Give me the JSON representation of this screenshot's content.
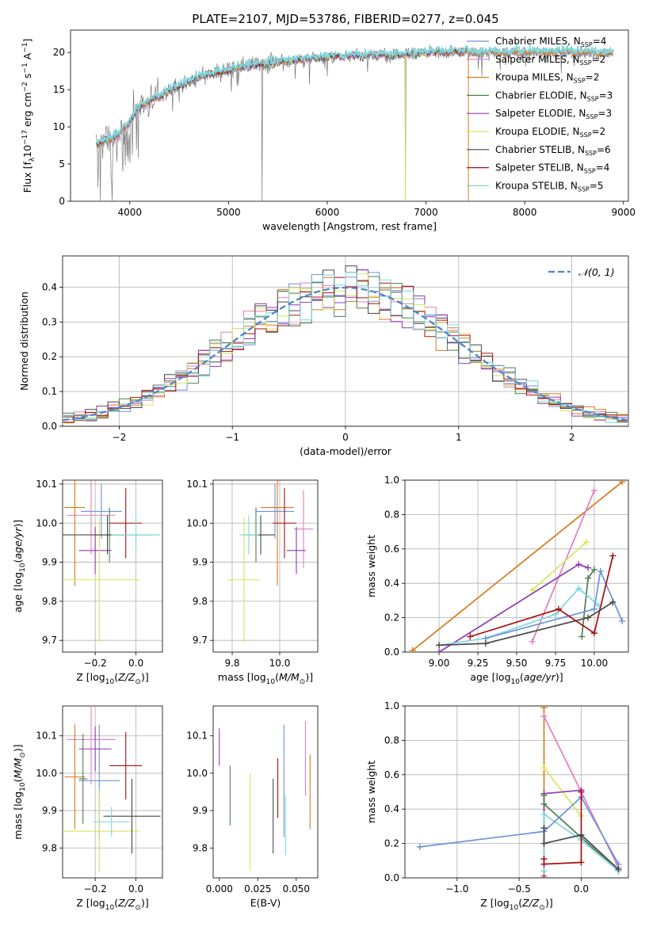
{
  "title": "PLATE=2107, MJD=53786, FIBERID=0277, z=0.045",
  "colors": {
    "Chabrier MILES": "#6b93d9",
    "Salpeter MILES": "#e07fbf",
    "Kroupa MILES": "#d87a1e",
    "Chabrier ELODIE": "#4f7f4f",
    "Salpeter ELODIE": "#8e3bb3",
    "Kroupa ELODIE": "#d6e65a",
    "Chabrier STELIB": "#474747",
    "Salpeter STELIB": "#a81010",
    "Kroupa STELIB": "#7fd5de",
    "data": "#7a7a7a",
    "normal": "#4f86c6"
  },
  "chart_data": [
    {
      "type": "line",
      "xlabel": "wavelength [Angstrom, rest frame]",
      "ylabel": "Flux [f_λ 10^-17 erg cm^-2 s^-1 A^-1]",
      "xlim": [
        3400,
        9050
      ],
      "ylim": [
        0,
        23
      ],
      "xticks": [
        4000,
        5000,
        6000,
        7000,
        8000,
        9000
      ],
      "yticks": [
        0,
        5,
        10,
        15,
        20
      ],
      "legend_position": "right",
      "legend": [
        {
          "model": "Chabrier MILES",
          "nssp": 4
        },
        {
          "model": "Salpeter MILES",
          "nssp": 2
        },
        {
          "model": "Kroupa MILES",
          "nssp": 2
        },
        {
          "model": "Chabrier ELODIE",
          "nssp": 3
        },
        {
          "model": "Salpeter ELODIE",
          "nssp": 3
        },
        {
          "model": "Kroupa ELODIE",
          "nssp": 2
        },
        {
          "model": "Chabrier STELIB",
          "nssp": 6
        },
        {
          "model": "Salpeter STELIB",
          "nssp": 4
        },
        {
          "model": "Kroupa STELIB",
          "nssp": 5
        }
      ],
      "continuum": {
        "wavelength": [
          3660,
          3800,
          3900,
          4000,
          4100,
          4200,
          4300,
          4500,
          4700,
          4900,
          5100,
          5300,
          5500,
          5700,
          6000,
          6300,
          6600,
          6900,
          7200,
          7450,
          7800,
          8200,
          8600,
          8900
        ],
        "flux": [
          7.5,
          8.5,
          9.0,
          10.8,
          12.8,
          13.5,
          14.2,
          15.5,
          16.6,
          17.3,
          18.0,
          18.4,
          18.8,
          19.0,
          19.4,
          19.6,
          19.7,
          19.9,
          20.0,
          20.1,
          20.0,
          20.1,
          20.0,
          20.0
        ]
      },
      "masked_ranges": [
        [
          3400,
          3660
        ],
        [
          7420,
          9050
        ]
      ],
      "spikes_to_zero": [
        3650,
        3700,
        3820,
        5340,
        6790
      ]
    },
    {
      "type": "histogram",
      "xlabel": "(data-model)/error",
      "ylabel": "Normed distribution",
      "xlim": [
        -2.5,
        2.5
      ],
      "ylim": [
        0,
        0.49
      ],
      "xticks": [
        -2,
        -1,
        0,
        1,
        2
      ],
      "yticks": [
        0.0,
        0.1,
        0.2,
        0.3,
        0.4
      ],
      "grid": true,
      "bin_width": 0.1,
      "reference_label": "𝒩(0, 1)",
      "legend_position": "top-right"
    },
    {
      "type": "errorbar",
      "xlabel": "Z [log10(Z/Z⊙)]",
      "ylabel": "age [log10(age/yr)]",
      "xlim": [
        -0.36,
        0.13
      ],
      "ylim": [
        9.67,
        10.11
      ],
      "xticks": [
        -0.2,
        0.0
      ],
      "yticks": [
        9.7,
        9.8,
        9.9,
        10.0,
        10.1
      ],
      "grid": true,
      "points": [
        {
          "model": "Chabrier MILES",
          "x": -0.17,
          "xerr": 0.1,
          "y": 10.03,
          "yerr": 0.07
        },
        {
          "model": "Salpeter MILES",
          "x": -0.22,
          "xerr": 0.12,
          "y": 10.02,
          "yerr": 0.1
        },
        {
          "model": "Kroupa MILES",
          "x": -0.3,
          "xerr": 0.05,
          "y": 10.04,
          "yerr": 0.2
        },
        {
          "model": "Chabrier ELODIE",
          "x": -0.13,
          "xerr": 0.07,
          "y": 9.97,
          "yerr": 0.07
        },
        {
          "model": "Salpeter ELODIE",
          "x": -0.2,
          "xerr": 0.08,
          "y": 9.93,
          "yerr": 0.06
        },
        {
          "model": "Kroupa ELODIE",
          "x": -0.18,
          "xerr": 0.2,
          "y": 9.855,
          "yerr": 0.16
        },
        {
          "model": "Chabrier STELIB",
          "x": -0.14,
          "xerr": 0.22,
          "y": 9.97,
          "yerr": 0.05
        },
        {
          "model": "Salpeter STELIB",
          "x": -0.05,
          "xerr": 0.08,
          "y": 10.0,
          "yerr": 0.09
        },
        {
          "model": "Kroupa STELIB",
          "x": 0.0,
          "xerr": 0.12,
          "y": 9.97,
          "yerr": 0.05
        }
      ]
    },
    {
      "type": "errorbar",
      "xlabel": "mass [log10(M/M⊙)]",
      "ylabel": "",
      "xlim": [
        9.72,
        10.16
      ],
      "ylim": [
        9.67,
        10.11
      ],
      "xticks": [
        9.8,
        10.0
      ],
      "yticks": [
        9.7,
        9.8,
        9.9,
        10.0,
        10.1
      ],
      "grid": true,
      "points": [
        {
          "model": "Chabrier MILES",
          "x": 9.98,
          "xerr": 0.08,
          "y": 10.03,
          "yerr": 0.07
        },
        {
          "model": "Salpeter MILES",
          "x": 10.1,
          "xerr": 0.04,
          "y": 9.985,
          "yerr": 0.1
        },
        {
          "model": "Kroupa MILES",
          "x": 9.99,
          "xerr": 0.07,
          "y": 10.04,
          "yerr": 0.2
        },
        {
          "model": "Chabrier ELODIE",
          "x": 9.9,
          "xerr": 0.05,
          "y": 9.97,
          "yerr": 0.07
        },
        {
          "model": "Salpeter ELODIE",
          "x": 10.07,
          "xerr": 0.04,
          "y": 9.93,
          "yerr": 0.06
        },
        {
          "model": "Kroupa ELODIE",
          "x": 9.85,
          "xerr": 0.07,
          "y": 9.855,
          "yerr": 0.16
        },
        {
          "model": "Chabrier STELIB",
          "x": 9.92,
          "xerr": 0.06,
          "y": 9.97,
          "yerr": 0.05
        },
        {
          "model": "Salpeter STELIB",
          "x": 10.02,
          "xerr": 0.05,
          "y": 10.0,
          "yerr": 0.09
        },
        {
          "model": "Kroupa STELIB",
          "x": 9.87,
          "xerr": 0.04,
          "y": 9.97,
          "yerr": 0.05
        }
      ]
    },
    {
      "type": "line",
      "xlabel": "age [log10(age/yr)]",
      "ylabel": "mass weight",
      "xlim": [
        8.78,
        10.22
      ],
      "ylim": [
        0,
        1.0
      ],
      "xticks": [
        9.0,
        9.25,
        9.5,
        9.75,
        10.0
      ],
      "yticks": [
        0.0,
        0.2,
        0.4,
        0.6,
        0.8,
        1.0
      ],
      "grid": true,
      "series": [
        {
          "model": "Kroupa MILES",
          "x": [
            8.83,
            10.18
          ],
          "y": [
            0.01,
            0.99
          ]
        },
        {
          "model": "Salpeter MILES",
          "x": [
            9.6,
            10.0
          ],
          "y": [
            0.06,
            0.94
          ]
        },
        {
          "model": "Kroupa ELODIE",
          "x": [
            9.6,
            9.95
          ],
          "y": [
            0.36,
            0.64
          ]
        },
        {
          "model": "Salpeter ELODIE",
          "x": [
            9.0,
            9.9,
            9.96
          ],
          "y": [
            0.0,
            0.51,
            0.49
          ]
        },
        {
          "model": "Chabrier ELODIE",
          "x": [
            9.92,
            9.96,
            10.0
          ],
          "y": [
            0.09,
            0.43,
            0.48
          ]
        },
        {
          "model": "Kroupa STELIB",
          "x": [
            9.0,
            9.3,
            9.75,
            9.9,
            10.03
          ],
          "y": [
            0.04,
            0.08,
            0.22,
            0.37,
            0.27
          ]
        },
        {
          "model": "Chabrier MILES",
          "x": [
            9.3,
            10.0,
            10.04,
            10.18
          ],
          "y": [
            0.08,
            0.25,
            0.47,
            0.18
          ]
        },
        {
          "model": "Salpeter STELIB",
          "x": [
            9.2,
            9.77,
            10.0,
            10.12
          ],
          "y": [
            0.09,
            0.25,
            0.11,
            0.56
          ]
        },
        {
          "model": "Chabrier STELIB",
          "x": [
            9.0,
            9.3,
            9.96,
            10.12
          ],
          "y": [
            0.04,
            0.05,
            0.2,
            0.29
          ]
        }
      ]
    },
    {
      "type": "errorbar",
      "xlabel": "Z [log10(Z/Z⊙)]",
      "ylabel": "mass [log10(M/M⊙)]",
      "xlim": [
        -0.36,
        0.13
      ],
      "ylim": [
        9.72,
        10.18
      ],
      "xticks": [
        -0.2,
        0.0
      ],
      "yticks": [
        9.8,
        9.9,
        10.0,
        10.1
      ],
      "grid": true,
      "points": [
        {
          "model": "Chabrier MILES",
          "x": -0.18,
          "xerr": 0.1,
          "y": 9.98,
          "yerr": 0.15
        },
        {
          "model": "Salpeter MILES",
          "x": -0.22,
          "xerr": 0.12,
          "y": 10.09,
          "yerr": 0.12
        },
        {
          "model": "Kroupa MILES",
          "x": -0.3,
          "xerr": 0.05,
          "y": 9.99,
          "yerr": 0.14
        },
        {
          "model": "Chabrier ELODIE",
          "x": -0.26,
          "xerr": 0.02,
          "y": 9.985,
          "yerr": 0.12
        },
        {
          "model": "Salpeter ELODIE",
          "x": -0.2,
          "xerr": 0.08,
          "y": 10.065,
          "yerr": 0.06
        },
        {
          "model": "Kroupa ELODIE",
          "x": -0.18,
          "xerr": 0.2,
          "y": 9.845,
          "yerr": 0.11
        },
        {
          "model": "Chabrier STELIB",
          "x": -0.02,
          "xerr": 0.14,
          "y": 9.885,
          "yerr": 0.1
        },
        {
          "model": "Salpeter STELIB",
          "x": -0.05,
          "xerr": 0.08,
          "y": 10.02,
          "yerr": 0.09
        },
        {
          "model": "Kroupa STELIB",
          "x": -0.12,
          "xerr": 0.09,
          "y": 9.87,
          "yerr": 0.04
        }
      ]
    },
    {
      "type": "errorbar",
      "xlabel": "E(B-V)",
      "ylabel": "",
      "xlim": [
        -0.004,
        0.064
      ],
      "ylim": [
        9.72,
        10.18
      ],
      "xticks": [
        0.0,
        0.025,
        0.05
      ],
      "yticks": [
        9.8,
        9.9,
        10.0,
        10.1
      ],
      "grid": false,
      "points": [
        {
          "model": "Chabrier MILES",
          "x": 0.042,
          "y": 9.98,
          "yerr": 0.15
        },
        {
          "model": "Salpeter MILES",
          "x": 0.056,
          "y": 10.04,
          "yerr": 0.1
        },
        {
          "model": "Kroupa MILES",
          "x": 0.059,
          "y": 9.95,
          "yerr": 0.1
        },
        {
          "model": "Chabrier ELODIE",
          "x": 0.007,
          "y": 9.94,
          "yerr": 0.08
        },
        {
          "model": "Salpeter ELODIE",
          "x": 0.0,
          "y": 10.07,
          "yerr": 0.05
        },
        {
          "model": "Kroupa ELODIE",
          "x": 0.02,
          "y": 9.87,
          "yerr": 0.13
        },
        {
          "model": "Chabrier STELIB",
          "x": 0.035,
          "y": 9.885,
          "yerr": 0.1
        },
        {
          "model": "Salpeter STELIB",
          "x": 0.038,
          "y": 9.96,
          "yerr": 0.08
        },
        {
          "model": "Kroupa STELIB",
          "x": 0.043,
          "y": 9.86,
          "yerr": 0.08
        }
      ]
    },
    {
      "type": "line",
      "xlabel": "Z [log10(Z/Z⊙)]",
      "ylabel": "mass weight",
      "xlim": [
        -1.42,
        0.38
      ],
      "ylim": [
        0,
        1.0
      ],
      "xticks": [
        -1.0,
        -0.5,
        0.0
      ],
      "yticks": [
        0.0,
        0.2,
        0.4,
        0.6,
        0.8,
        1.0
      ],
      "grid": true,
      "series": [
        {
          "model": "Kroupa MILES",
          "x": [
            -0.3,
            -0.3
          ],
          "y": [
            0.01,
            0.99
          ]
        },
        {
          "model": "Salpeter MILES",
          "x": [
            -0.3,
            0.3
          ],
          "y": [
            0.94,
            0.06
          ]
        },
        {
          "model": "Kroupa ELODIE",
          "x": [
            -0.3,
            0.0
          ],
          "y": [
            0.64,
            0.36
          ]
        },
        {
          "model": "Salpeter ELODIE",
          "x": [
            -0.3,
            -0.3,
            0.0
          ],
          "y": [
            0.0,
            0.49,
            0.51
          ]
        },
        {
          "model": "Chabrier ELODIE",
          "x": [
            -0.3,
            -0.3,
            0.3
          ],
          "y": [
            0.48,
            0.43,
            0.04
          ]
        },
        {
          "model": "Kroupa STELIB",
          "x": [
            -0.3,
            -0.3,
            0.0,
            0.3
          ],
          "y": [
            0.04,
            0.37,
            0.22,
            0.04
          ]
        },
        {
          "model": "Chabrier MILES",
          "x": [
            -1.3,
            -0.3,
            0.0,
            0.3
          ],
          "y": [
            0.18,
            0.27,
            0.47,
            0.08
          ]
        },
        {
          "model": "Salpeter STELIB",
          "x": [
            -0.3,
            -0.3,
            0.0,
            0.0
          ],
          "y": [
            0.11,
            0.08,
            0.09,
            0.5
          ]
        },
        {
          "model": "Chabrier STELIB",
          "x": [
            -0.3,
            -0.3,
            0.0,
            0.3
          ],
          "y": [
            0.29,
            0.2,
            0.25,
            0.05
          ]
        }
      ]
    }
  ]
}
